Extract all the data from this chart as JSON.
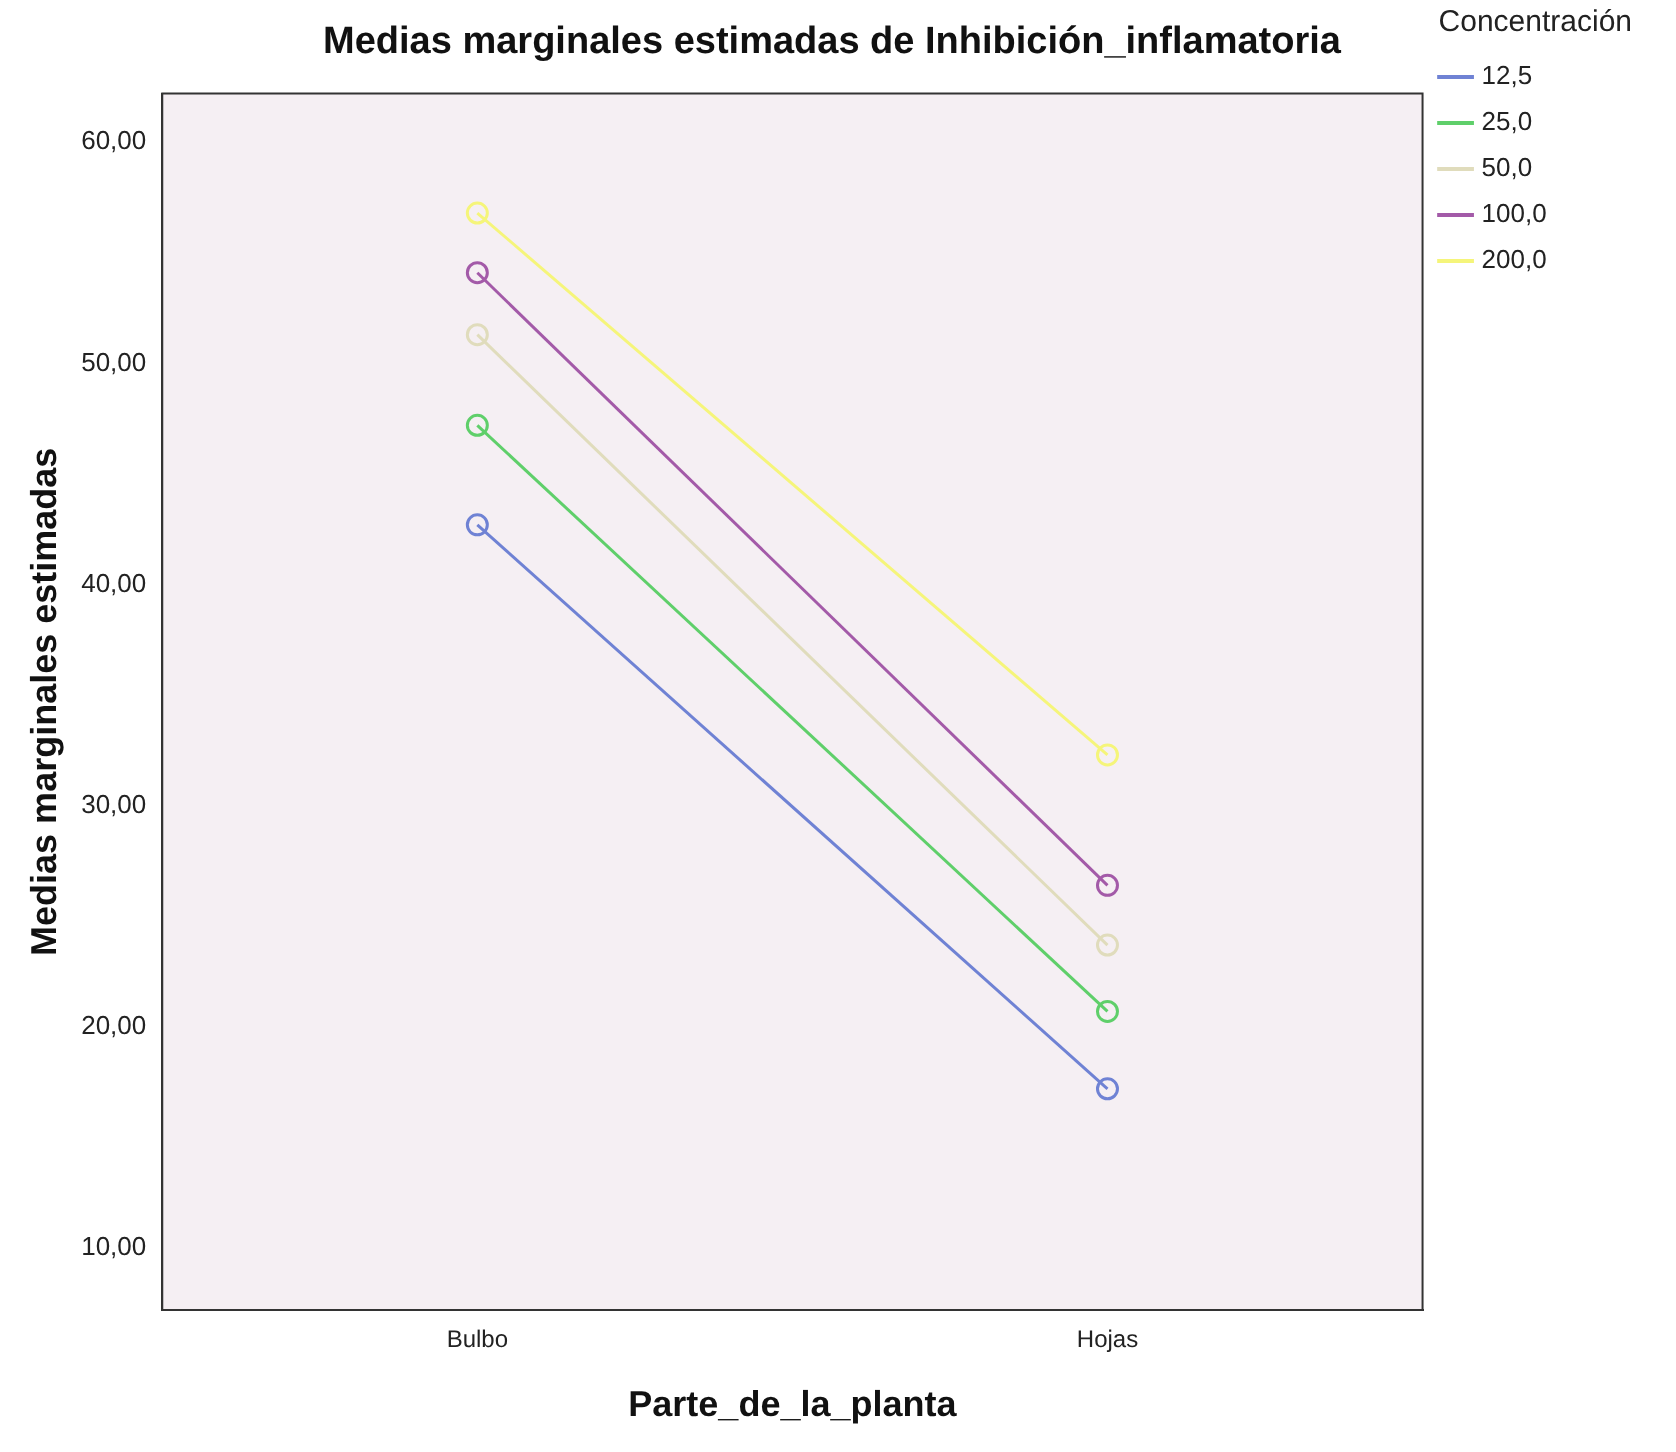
{
  "chart_data": {
    "type": "line",
    "title": "Medias marginales estimadas de Inhibición_inflamatoria",
    "xlabel": "Parte_de_la_planta",
    "ylabel": "Medias marginales estimadas",
    "legend_title": "Concentración",
    "categories": [
      "Bulbo",
      "Hojas"
    ],
    "series": [
      {
        "name": "12,5",
        "color": "#6f82d4",
        "values": [
          42.7,
          17.2
        ]
      },
      {
        "name": "25,0",
        "color": "#5fcf6a",
        "values": [
          47.2,
          20.7
        ]
      },
      {
        "name": "50,0",
        "color": "#e0dcbc",
        "values": [
          51.3,
          23.7
        ]
      },
      {
        "name": "100,0",
        "color": "#a35aa8",
        "values": [
          54.1,
          26.4
        ]
      },
      {
        "name": "200,0",
        "color": "#f5f57a",
        "values": [
          56.8,
          32.3
        ]
      }
    ],
    "ylim": [
      7.2,
      62.2
    ],
    "yticks": [
      {
        "value": 10,
        "label": "10,00"
      },
      {
        "value": 20,
        "label": "20,00"
      },
      {
        "value": 30,
        "label": "30,00"
      },
      {
        "value": 40,
        "label": "40,00"
      },
      {
        "value": 50,
        "label": "50,00"
      },
      {
        "value": 60,
        "label": "60,00"
      }
    ],
    "grid": false,
    "legend": "top right",
    "marker": "circle",
    "line_style": "solid"
  }
}
